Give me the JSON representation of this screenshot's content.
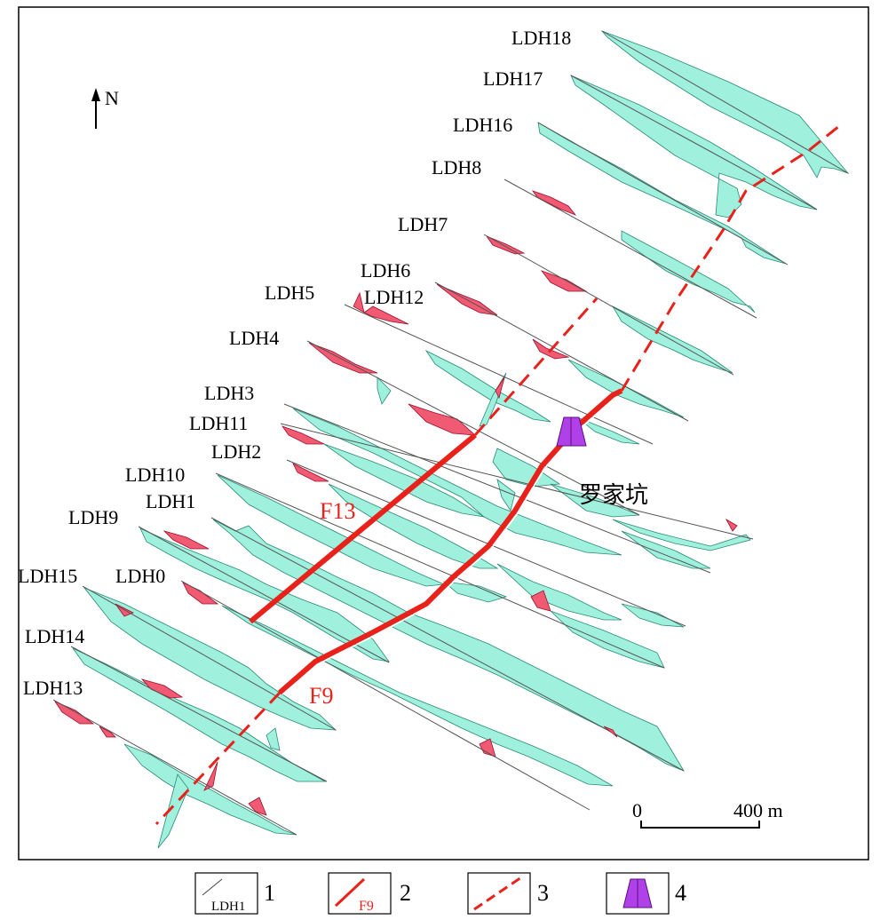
{
  "north": "N",
  "place_name": "罗家坑",
  "faults": {
    "f13": "F13",
    "f9": "F9"
  },
  "scale": {
    "zero": "0",
    "max": "400 m"
  },
  "profiles": [
    {
      "id": "ldh18",
      "label": "LDH18"
    },
    {
      "id": "ldh17",
      "label": "LDH17"
    },
    {
      "id": "ldh16",
      "label": "LDH16"
    },
    {
      "id": "ldh8",
      "label": "LDH8"
    },
    {
      "id": "ldh7",
      "label": "LDH7"
    },
    {
      "id": "ldh6",
      "label": "LDH6"
    },
    {
      "id": "ldh12",
      "label": "LDH12"
    },
    {
      "id": "ldh5",
      "label": "LDH5"
    },
    {
      "id": "ldh4",
      "label": "LDH4"
    },
    {
      "id": "ldh3",
      "label": "LDH3"
    },
    {
      "id": "ldh11",
      "label": "LDH11"
    },
    {
      "id": "ldh2",
      "label": "LDH2"
    },
    {
      "id": "ldh10",
      "label": "LDH10"
    },
    {
      "id": "ldh1",
      "label": "LDH1"
    },
    {
      "id": "ldh9",
      "label": "LDH9"
    },
    {
      "id": "ldh15",
      "label": "LDH15"
    },
    {
      "id": "ldh0",
      "label": "LDH0"
    },
    {
      "id": "ldh14",
      "label": "LDH14"
    },
    {
      "id": "ldh13",
      "label": "LDH13"
    }
  ],
  "legend": [
    {
      "num": "1",
      "sample": "LDH1"
    },
    {
      "num": "2",
      "sample": "F9"
    },
    {
      "num": "3",
      "sample": ""
    },
    {
      "num": "4",
      "sample": ""
    }
  ],
  "colors": {
    "positive_anomaly": "#9ff0dc",
    "negative_anomaly": "#f05a73",
    "fault": "#e8221b",
    "site": "#b040e8"
  }
}
